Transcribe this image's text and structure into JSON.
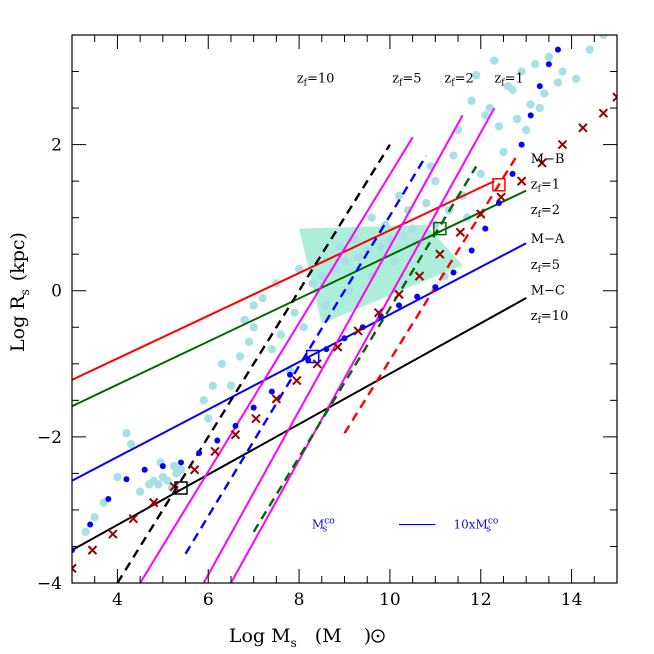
{
  "chart_data": {
    "type": "line",
    "title": "",
    "xlabel": "Log M",
    "xlabel_sub": "s",
    "xlabel_unit": "(M",
    "xlabel_unit_end": ")",
    "ylabel": "Log R",
    "ylabel_sub": "s",
    "ylabel_unit": "(kpc)",
    "xlim": [
      3,
      15
    ],
    "ylim": [
      -4,
      3.5
    ],
    "x_ticks": [
      4,
      6,
      8,
      10,
      12,
      14
    ],
    "x_tick_labels": [
      "4",
      "6",
      "8",
      "10",
      "12",
      "14"
    ],
    "y_ticks": [
      -4,
      -2,
      0,
      2
    ],
    "y_tick_labels": [
      "−4",
      "−2",
      "0",
      "2"
    ],
    "colors": {
      "red": "#ff0000",
      "green": "#006600",
      "blue": "#0000ff",
      "black": "#000000",
      "magenta": "#ff00ff",
      "maroon": "#990000",
      "cyan": "#a8e0e6",
      "cyan_dense": "#90e8cc"
    },
    "relations": [
      {
        "name": "M-B zf=1",
        "color": "red",
        "x": [
          3,
          12.3
        ],
        "y": [
          -1.22,
          1.5
        ]
      },
      {
        "name": "M-B zf=2",
        "color": "green",
        "x": [
          3,
          13
        ],
        "y": [
          -1.58,
          1.37
        ]
      },
      {
        "name": "M-A zf=5",
        "color": "blue",
        "x": [
          3,
          13
        ],
        "y": [
          -2.6,
          0.65
        ]
      },
      {
        "name": "M-C zf=10",
        "color": "black",
        "x": [
          3,
          13
        ],
        "y": [
          -3.55,
          -0.1
        ]
      }
    ],
    "formation_dashed": [
      {
        "name": "zf=10",
        "color": "black",
        "x": [
          4.0,
          10.0
        ],
        "y": [
          -4.0,
          2.0
        ]
      },
      {
        "name": "zf=5",
        "color": "blue",
        "x": [
          5.5,
          10.8
        ],
        "y": [
          -3.6,
          1.85
        ]
      },
      {
        "name": "zf=2",
        "color": "green",
        "x": [
          7.0,
          11.9
        ],
        "y": [
          -3.3,
          1.7
        ]
      },
      {
        "name": "zf=1",
        "color": "red",
        "x": [
          9.0,
          12.8
        ],
        "y": [
          -1.95,
          1.85
        ]
      }
    ],
    "magenta_lines": [
      {
        "x": [
          4.5,
          10.5
        ],
        "y": [
          -4.0,
          2.1
        ]
      },
      {
        "x": [
          5.9,
          11.6
        ],
        "y": [
          -4.0,
          2.4
        ]
      },
      {
        "x": [
          6.5,
          12.3
        ],
        "y": [
          -4.0,
          2.5
        ]
      }
    ],
    "cross_series": {
      "name": "crosses",
      "color": "maroon",
      "x": [
        3.0,
        3.45,
        3.9,
        4.35,
        4.8,
        5.25,
        5.7,
        6.15,
        6.6,
        7.05,
        7.5,
        7.95,
        8.4,
        8.85,
        9.3,
        9.75,
        10.2,
        10.65,
        11.1,
        11.55,
        12.0,
        12.45,
        12.9,
        13.35,
        13.8,
        14.25,
        14.7,
        15.0
      ],
      "y": [
        -3.8,
        -3.55,
        -3.33,
        -3.12,
        -2.9,
        -2.68,
        -2.45,
        -2.2,
        -1.97,
        -1.75,
        -1.48,
        -1.23,
        -1.0,
        -0.77,
        -0.55,
        -0.3,
        -0.05,
        0.2,
        0.5,
        0.8,
        1.05,
        1.28,
        1.5,
        1.75,
        2.0,
        2.23,
        2.43,
        2.65
      ]
    },
    "dotted_series": {
      "name": "blue dots",
      "color": "blue",
      "x": [
        3.0,
        3.4,
        3.8,
        4.2,
        4.6,
        5.0,
        5.4,
        5.8,
        6.2,
        6.6,
        7.0,
        7.4,
        7.8,
        8.2,
        8.6,
        9.0,
        9.4,
        9.8,
        10.2,
        10.6,
        11.0,
        11.4,
        11.8,
        12.1,
        12.4,
        12.7,
        12.9,
        13.1,
        13.3,
        13.5,
        13.7
      ],
      "y": [
        -3.55,
        -3.2,
        -2.85,
        -2.58,
        -2.45,
        -2.4,
        -2.35,
        -2.22,
        -2.05,
        -1.85,
        -1.6,
        -1.38,
        -1.15,
        -0.95,
        -0.8,
        -0.65,
        -0.5,
        -0.35,
        -0.2,
        -0.08,
        0.05,
        0.25,
        0.55,
        0.85,
        1.2,
        1.6,
        2.0,
        2.4,
        2.8,
        3.1,
        3.3
      ]
    },
    "square_markers": [
      {
        "color": "black",
        "x": 5.4,
        "y": -2.7
      },
      {
        "color": "blue",
        "x": 8.3,
        "y": -0.9
      },
      {
        "color": "green",
        "x": 11.1,
        "y": 0.85
      },
      {
        "color": "red",
        "x": 12.4,
        "y": 1.45
      }
    ],
    "scatter_cyan": {
      "name": "observed galaxies",
      "x": [
        4.9,
        5.0,
        5.1,
        5.2,
        5.3,
        5.4,
        4.95,
        5.25,
        4.5,
        4.7,
        4.8,
        4.2,
        4.3,
        3.3,
        3.5,
        3.7,
        4.0,
        6.5,
        6.9,
        7.0,
        7.4,
        7.8,
        7.6,
        7.9,
        7.0,
        6.8,
        8.5,
        9.0,
        9.5,
        10.0,
        10.5,
        8.3,
        8.8,
        9.3,
        9.8,
        10.3,
        8.6,
        9.1,
        9.6,
        10.1,
        10.6,
        11.0,
        11.3,
        11.6,
        12.0,
        12.5,
        13.0,
        12.2,
        12.6,
        12.9,
        13.2,
        13.5,
        13.8,
        14.1,
        14.4,
        14.7,
        11.8,
        12.1,
        11.5,
        11.0,
        10.8,
        11.9,
        12.3,
        12.7,
        13.1,
        13.4,
        13.7,
        12.4,
        12.8,
        13.3,
        9.9,
        9.6,
        9.2,
        8.9,
        10.4,
        11.2,
        11.7,
        8.1,
        8.0,
        5.9,
        6.1,
        6.3,
        6.7,
        7.2,
        7.5,
        6.0,
        10.2,
        10.9,
        11.4
      ],
      "y": [
        -2.65,
        -2.55,
        -2.6,
        -2.7,
        -2.5,
        -2.45,
        -2.35,
        -2.4,
        -2.75,
        -2.65,
        -2.6,
        -1.95,
        -2.1,
        -3.3,
        -3.1,
        -2.9,
        -2.55,
        -1.3,
        -0.7,
        -0.5,
        -0.8,
        -1.1,
        -0.6,
        -0.3,
        -0.2,
        -0.4,
        0.2,
        0.4,
        0.55,
        0.7,
        0.85,
        0.1,
        0.3,
        0.45,
        0.6,
        0.75,
        -0.2,
        0.0,
        0.2,
        0.4,
        0.65,
        0.9,
        1.1,
        1.3,
        1.6,
        1.9,
        2.2,
        2.5,
        2.8,
        3.0,
        3.1,
        3.2,
        3.0,
        2.9,
        3.3,
        3.5,
        2.6,
        2.4,
        2.2,
        1.5,
        1.2,
        2.95,
        3.15,
        2.75,
        2.55,
        2.7,
        2.85,
        2.25,
        2.35,
        2.5,
        0.9,
        1.0,
        0.7,
        0.6,
        1.1,
        0.2,
        1.0,
        -0.5,
        0.3,
        -1.5,
        -1.3,
        -1.0,
        -0.9,
        -0.1,
        0.1,
        -1.75,
        1.3,
        1.7,
        1.85
      ]
    },
    "dense_region": {
      "name": "dense band",
      "x": [
        8.0,
        10.8,
        11.6,
        8.5
      ],
      "y": [
        0.85,
        0.9,
        0.35,
        -0.45
      ]
    },
    "annotations": {
      "formation_labels": [
        {
          "pre": "z",
          "sub": "f",
          "post": "=10",
          "x": 7.95,
          "y": 2.85
        },
        {
          "pre": "z",
          "sub": "f",
          "post": "=5",
          "x": 10.05,
          "y": 2.85
        },
        {
          "pre": "z",
          "sub": "f",
          "post": "=2",
          "x": 11.2,
          "y": 2.85
        },
        {
          "pre": "z",
          "sub": "f",
          "post": "=1",
          "x": 12.3,
          "y": 2.85
        }
      ],
      "right_labels": [
        {
          "pre": "M−B",
          "sub": "",
          "post": "",
          "x": 13.1,
          "y": 1.75
        },
        {
          "pre": "z",
          "sub": "f",
          "post": "=1",
          "x": 13.1,
          "y": 1.4
        },
        {
          "pre": "z",
          "sub": "f",
          "post": "=2",
          "x": 13.1,
          "y": 1.05
        },
        {
          "pre": "M−A",
          "sub": "",
          "post": "",
          "x": 13.1,
          "y": 0.65
        },
        {
          "pre": "z",
          "sub": "f",
          "post": "=5",
          "x": 13.1,
          "y": 0.3
        },
        {
          "pre": "M−C",
          "sub": "",
          "post": "",
          "x": 13.1,
          "y": -0.05
        },
        {
          "pre": "z",
          "sub": "f",
          "post": "=10",
          "x": 13.1,
          "y": -0.4
        }
      ]
    },
    "legend": {
      "left_pre": "M",
      "left_sub": "s",
      "left_sup": "co",
      "right_pre": "10xM",
      "right_sub": "s",
      "right_sup": "co",
      "position": "bottom-right"
    }
  }
}
